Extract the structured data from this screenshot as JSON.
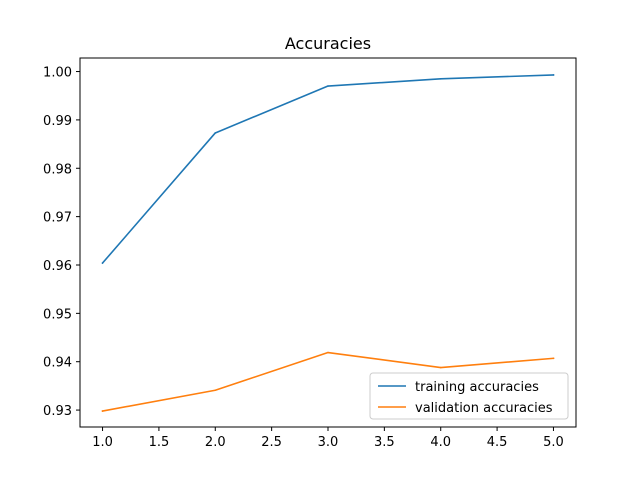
{
  "chart_data": {
    "type": "line",
    "title": "Accuracies",
    "xlabel": "",
    "ylabel": "",
    "x": [
      1.0,
      2.0,
      3.0,
      4.0,
      5.0
    ],
    "xlim": [
      0.8,
      5.2
    ],
    "ylim": [
      0.9265,
      1.0028
    ],
    "x_ticks": [
      "1.0",
      "1.5",
      "2.0",
      "2.5",
      "3.0",
      "3.5",
      "4.0",
      "4.5",
      "5.0"
    ],
    "y_ticks": [
      "0.93",
      "0.94",
      "0.95",
      "0.96",
      "0.97",
      "0.98",
      "0.99",
      "1.00"
    ],
    "grid": false,
    "legend_position": "lower-right",
    "series": [
      {
        "name": "training accuracies",
        "color": "#1f77b4",
        "values": [
          0.9604,
          0.9873,
          0.997,
          0.9985,
          0.9993
        ]
      },
      {
        "name": "validation accuracies",
        "color": "#ff7f0e",
        "values": [
          0.9298,
          0.9341,
          0.9419,
          0.9388,
          0.9407
        ]
      }
    ]
  }
}
